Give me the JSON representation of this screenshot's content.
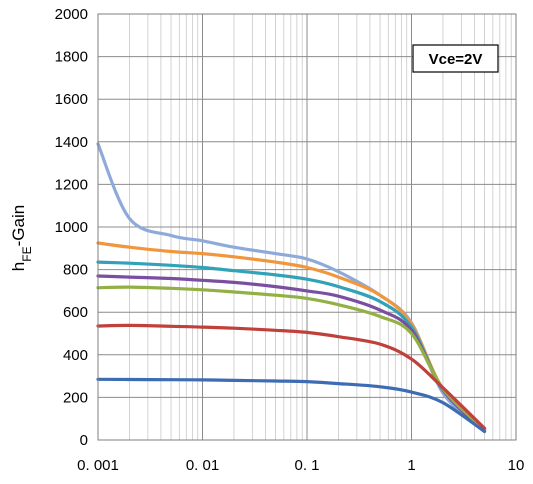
{
  "chart_data": {
    "type": "line",
    "title": "",
    "xlabel": "",
    "ylabel_main": "h",
    "ylabel_sub": "FE",
    "ylabel_tail": "-Gain",
    "annotation": "Vce=2V",
    "xscale": "log",
    "xlim": [
      0.001,
      10
    ],
    "ylim": [
      0,
      2000
    ],
    "x_tick_labels": [
      "0. 001",
      "0. 01",
      "0. 1",
      "1",
      "10"
    ],
    "y_tick_labels": [
      "0",
      "200",
      "400",
      "600",
      "800",
      "1000",
      "1200",
      "1400",
      "1600",
      "1800",
      "2000"
    ],
    "grid": true,
    "x": [
      0.001,
      0.002,
      0.005,
      0.01,
      0.02,
      0.05,
      0.1,
      0.2,
      0.5,
      1,
      2,
      5
    ],
    "series": [
      {
        "color": "#8eaadb",
        "values": [
          1390,
          1040,
          960,
          935,
          905,
          875,
          850,
          790,
          680,
          550,
          220,
          40
        ]
      },
      {
        "color": "#f0963c",
        "values": [
          925,
          905,
          885,
          875,
          860,
          835,
          810,
          765,
          680,
          545,
          240,
          50
        ]
      },
      {
        "color": "#31a2b8",
        "values": [
          835,
          830,
          820,
          810,
          795,
          775,
          755,
          720,
          650,
          530,
          235,
          45
        ]
      },
      {
        "color": "#7a4ea0",
        "values": [
          770,
          765,
          758,
          750,
          740,
          720,
          700,
          675,
          610,
          515,
          235,
          45
        ]
      },
      {
        "color": "#93b044",
        "values": [
          715,
          718,
          712,
          705,
          695,
          680,
          665,
          635,
          580,
          500,
          240,
          50
        ]
      },
      {
        "color": "#c0403c",
        "values": [
          535,
          538,
          534,
          530,
          525,
          515,
          505,
          485,
          450,
          380,
          245,
          55
        ]
      },
      {
        "color": "#3d6cb4",
        "values": [
          285,
          284,
          283,
          282,
          280,
          277,
          274,
          265,
          250,
          225,
          175,
          40
        ]
      }
    ]
  }
}
